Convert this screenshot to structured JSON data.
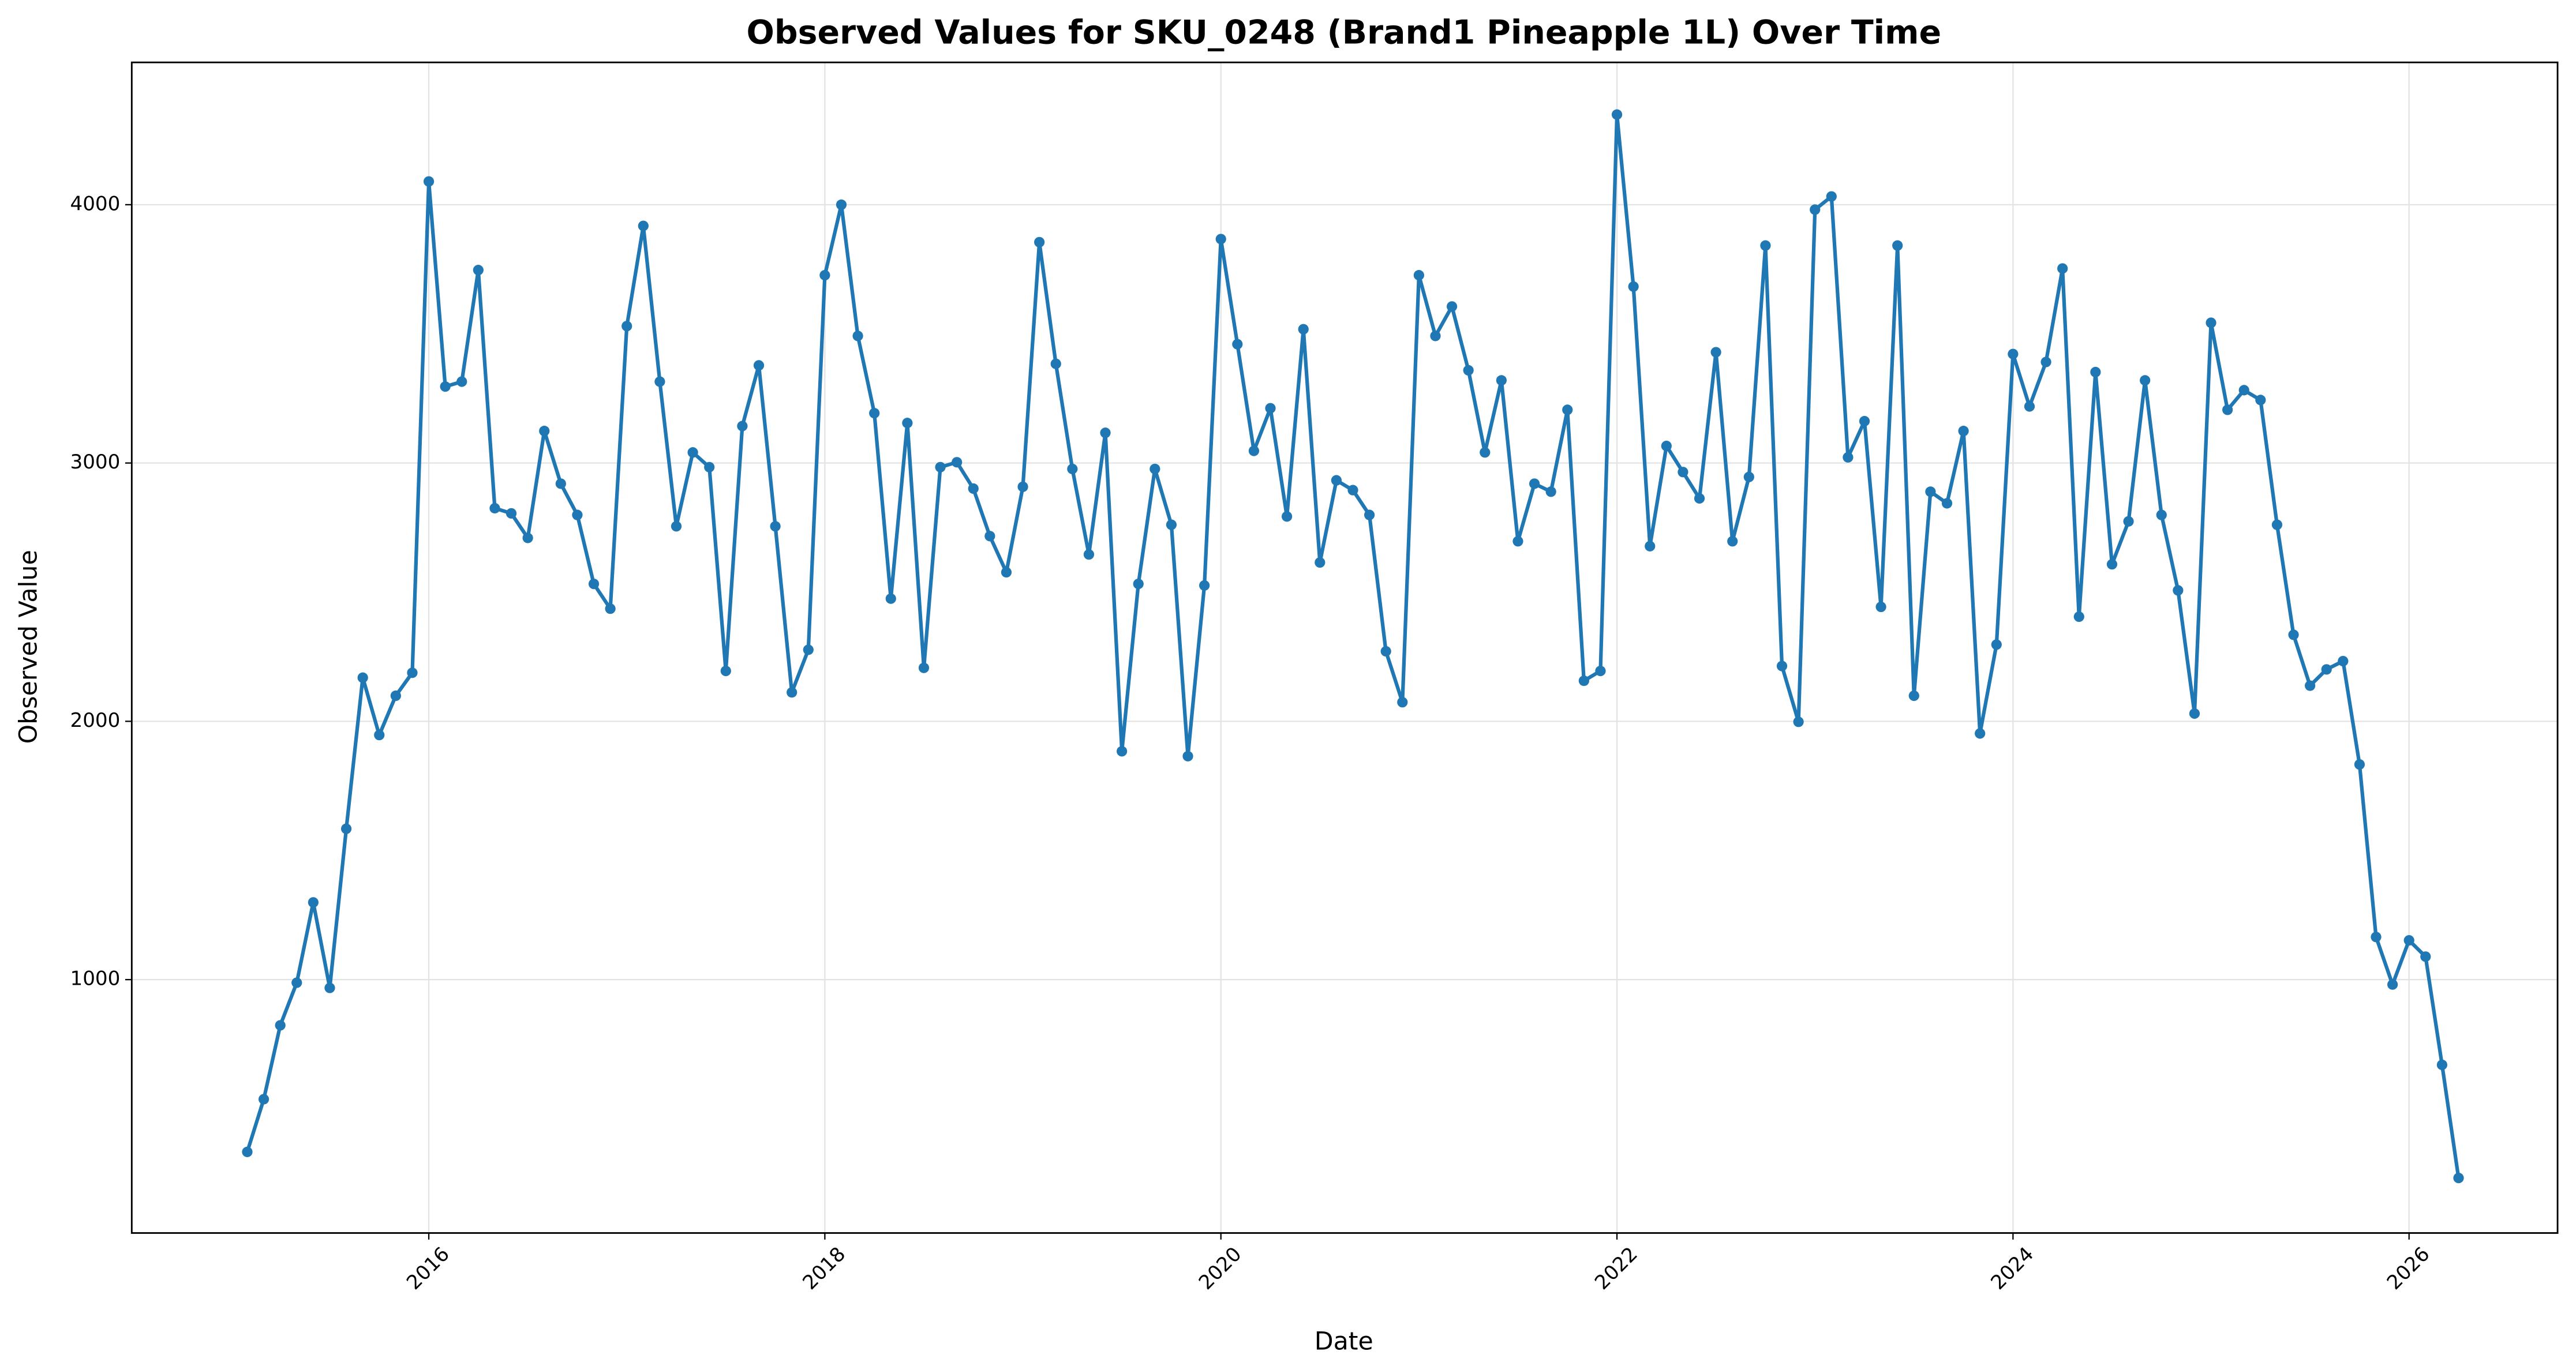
{
  "chart_data": {
    "type": "line",
    "title": "Observed Values for SKU_0248 (Brand1 Pineapple 1L) Over Time",
    "x_label": "Date",
    "y_label": "Observed Value",
    "color": "#1f77b4",
    "grid": true,
    "x": [
      "2015-02",
      "2015-03",
      "2015-04",
      "2015-05",
      "2015-06",
      "2015-07",
      "2015-08",
      "2015-09",
      "2015-10",
      "2015-11",
      "2015-12",
      "2016-01",
      "2016-02",
      "2016-03",
      "2016-04",
      "2016-05",
      "2016-06",
      "2016-07",
      "2016-08",
      "2016-09",
      "2016-10",
      "2016-11",
      "2016-12",
      "2017-01",
      "2017-02",
      "2017-03",
      "2017-04",
      "2017-05",
      "2017-06",
      "2017-07",
      "2017-08",
      "2017-09",
      "2017-10",
      "2017-11",
      "2017-12",
      "2018-01",
      "2018-02",
      "2018-03",
      "2018-04",
      "2018-05",
      "2018-06",
      "2018-07",
      "2018-08",
      "2018-09",
      "2018-10",
      "2018-11",
      "2018-12",
      "2019-01",
      "2019-02",
      "2019-03",
      "2019-04",
      "2019-05",
      "2019-06",
      "2019-07",
      "2019-08",
      "2019-09",
      "2019-10",
      "2019-11",
      "2019-12",
      "2020-01",
      "2020-02",
      "2020-03",
      "2020-04",
      "2020-05",
      "2020-06",
      "2020-07",
      "2020-08",
      "2020-09",
      "2020-10",
      "2020-11",
      "2020-12",
      "2021-01",
      "2021-02",
      "2021-03",
      "2021-04",
      "2021-05",
      "2021-06",
      "2021-07",
      "2021-08",
      "2021-09",
      "2021-10",
      "2021-11",
      "2021-12",
      "2022-01",
      "2022-02",
      "2022-03",
      "2022-04",
      "2022-05",
      "2022-06",
      "2022-07",
      "2022-08",
      "2022-09",
      "2022-10",
      "2022-11",
      "2022-12",
      "2023-01",
      "2023-02",
      "2023-03",
      "2023-04",
      "2023-05",
      "2023-06",
      "2023-07",
      "2023-08",
      "2023-09",
      "2023-10",
      "2023-11",
      "2023-12",
      "2024-01",
      "2024-02",
      "2024-03",
      "2024-04",
      "2024-05",
      "2024-06",
      "2024-07",
      "2024-08",
      "2024-09",
      "2024-10",
      "2024-11",
      "2024-12",
      "2025-01",
      "2025-02",
      "2025-03",
      "2025-04",
      "2025-05",
      "2025-06",
      "2025-07",
      "2025-08",
      "2025-09",
      "2025-10",
      "2025-11",
      "2025-12",
      "2026-01",
      "2026-02",
      "2026-03",
      "2026-04"
    ],
    "values": [
      333,
      537,
      823,
      988,
      1299,
      968,
      1584,
      2169,
      1947,
      2099,
      2188,
      4090,
      3296,
      3315,
      3747,
      2825,
      2805,
      2710,
      3124,
      2920,
      2799,
      2532,
      2436,
      3530,
      3918,
      3315,
      2755,
      3041,
      2984,
      2195,
      3143,
      3378,
      2755,
      2112,
      2277,
      3727,
      4000,
      3492,
      3193,
      2475,
      3155,
      2207,
      2984,
      3003,
      2901,
      2717,
      2577,
      2908,
      3855,
      3384,
      2977,
      2646,
      3117,
      1884,
      2532,
      2977,
      2761,
      1865,
      2526,
      3867,
      3460,
      3047,
      3212,
      2793,
      3518,
      2615,
      2933,
      2895,
      2799,
      2271,
      2074,
      3727,
      3492,
      3606,
      3359,
      3041,
      3320,
      2697,
      2920,
      2889,
      3206,
      2157,
      2195,
      4349,
      3683,
      2678,
      3066,
      2965,
      2863,
      3429,
      2697,
      2946,
      3842,
      2214,
      1998,
      3981,
      4032,
      3022,
      3162,
      2443,
      3842,
      2099,
      2889,
      2844,
      3124,
      1953,
      2297,
      3422,
      3219,
      3391,
      3753,
      2405,
      3352,
      2608,
      2774,
      3320,
      2799,
      2507,
      2030,
      3543,
      3206,
      3282,
      3244,
      2761,
      2335,
      2138,
      2201,
      2233,
      1833,
      1165,
      981,
      1152,
      1089,
      670,
      232
    ],
    "xlim": [
      "2014-07",
      "2026-10"
    ],
    "xticks": [
      "2016",
      "2018",
      "2020",
      "2022",
      "2024",
      "2026"
    ],
    "ylim": [
      19,
      4551
    ],
    "yticks": [
      1000,
      2000,
      3000,
      4000
    ]
  }
}
